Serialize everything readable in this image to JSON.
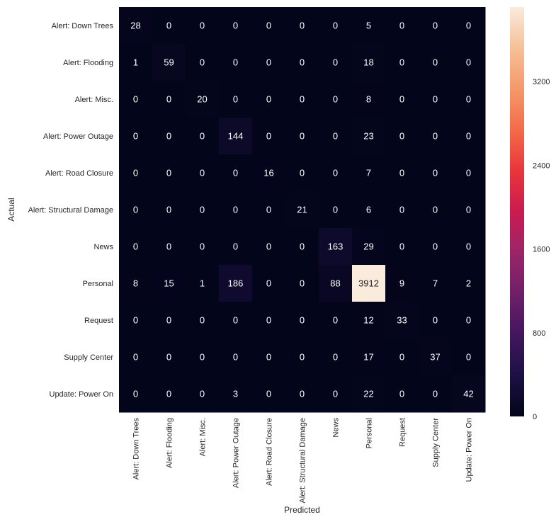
{
  "chart_data": {
    "type": "heatmap",
    "title": "",
    "xlabel": "Predicted",
    "ylabel": "Actual",
    "x_categories": [
      "Alert: Down Trees",
      "Alert: Flooding",
      "Alert: Misc.",
      "Alert: Power Outage",
      "Alert: Road Closure",
      "Alert: Structural Damage",
      "News",
      "Personal",
      "Request",
      "Supply Center",
      "Update: Power On"
    ],
    "y_categories": [
      "Alert: Down Trees",
      "Alert: Flooding",
      "Alert: Misc.",
      "Alert: Power Outage",
      "Alert: Road Closure",
      "Alert: Structural Damage",
      "News",
      "Personal",
      "Request",
      "Supply Center",
      "Update: Power On"
    ],
    "values": [
      [
        28,
        0,
        0,
        0,
        0,
        0,
        0,
        5,
        0,
        0,
        0
      ],
      [
        1,
        59,
        0,
        0,
        0,
        0,
        0,
        18,
        0,
        0,
        0
      ],
      [
        0,
        0,
        20,
        0,
        0,
        0,
        0,
        8,
        0,
        0,
        0
      ],
      [
        0,
        0,
        0,
        144,
        0,
        0,
        0,
        23,
        0,
        0,
        0
      ],
      [
        0,
        0,
        0,
        0,
        16,
        0,
        0,
        7,
        0,
        0,
        0
      ],
      [
        0,
        0,
        0,
        0,
        0,
        21,
        0,
        6,
        0,
        0,
        0
      ],
      [
        0,
        0,
        0,
        0,
        0,
        0,
        163,
        29,
        0,
        0,
        0
      ],
      [
        8,
        15,
        1,
        186,
        0,
        0,
        88,
        3912,
        9,
        7,
        2
      ],
      [
        0,
        0,
        0,
        0,
        0,
        0,
        0,
        12,
        33,
        0,
        0
      ],
      [
        0,
        0,
        0,
        0,
        0,
        0,
        0,
        17,
        0,
        37,
        0
      ],
      [
        0,
        0,
        0,
        3,
        0,
        0,
        0,
        22,
        0,
        0,
        42
      ]
    ],
    "colorbar": {
      "colormap": "rocket",
      "range": [
        0,
        3912
      ],
      "ticks": [
        0,
        800,
        1600,
        2400,
        3200
      ]
    },
    "grid": false
  }
}
